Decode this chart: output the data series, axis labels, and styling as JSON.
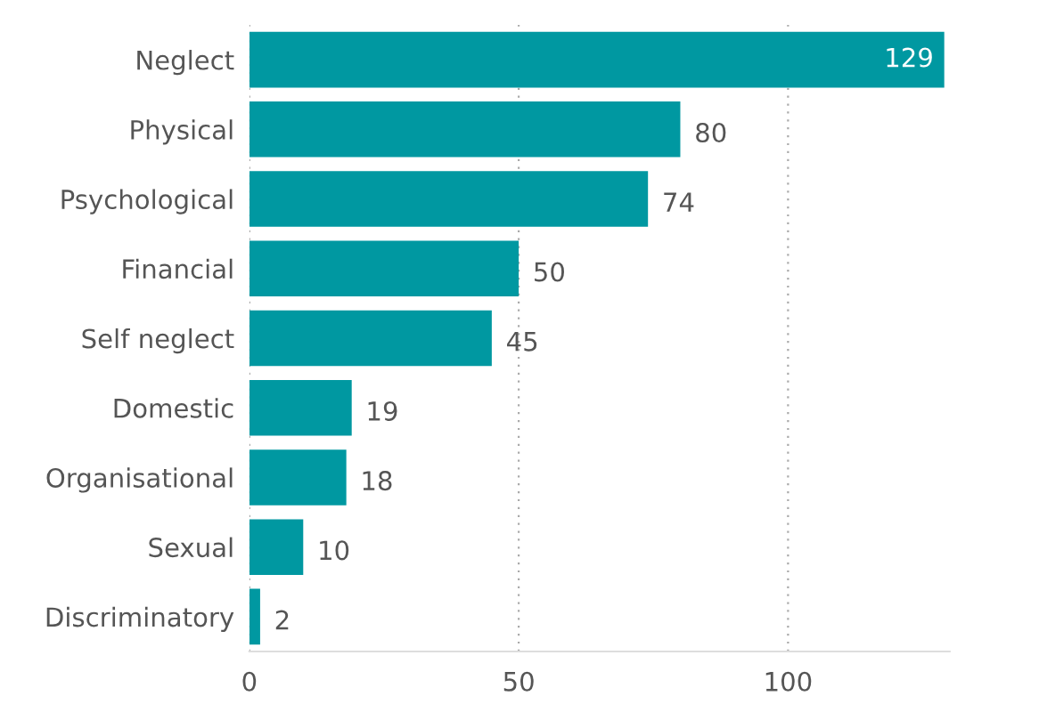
{
  "chart_data": {
    "type": "bar",
    "orientation": "horizontal",
    "categories": [
      "Neglect",
      "Physical",
      "Psychological",
      "Financial",
      "Self neglect",
      "Domestic",
      "Organisational",
      "Sexual",
      "Discriminatory"
    ],
    "values": [
      129,
      80,
      74,
      50,
      45,
      19,
      18,
      10,
      2
    ],
    "color": "#0098a1",
    "xlim": [
      0,
      130
    ],
    "xticks": [
      0,
      50,
      100
    ],
    "grid": "x",
    "data_labels": true,
    "legend": false
  }
}
